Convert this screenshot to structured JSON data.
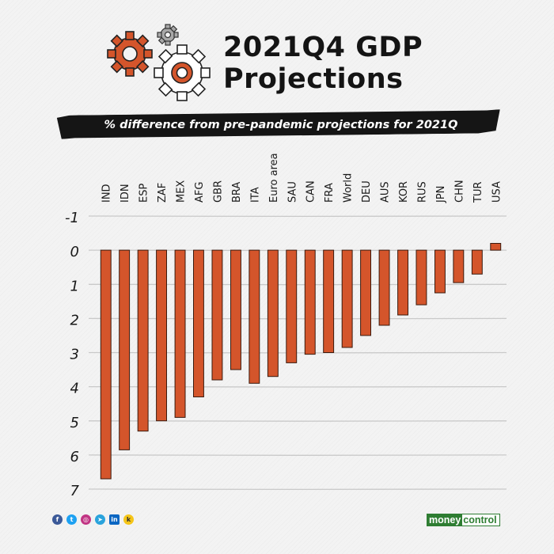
{
  "title": {
    "line1": "2021Q4 GDP",
    "line2": "Projections"
  },
  "subtitle": "% difference from pre-pandemic projections for 2021Q",
  "colors": {
    "bar": "#d4552b",
    "bar_stroke": "#3a1a0e",
    "grid": "#c9c9c9",
    "text": "#1a1a1a",
    "gear_orange": "#d4552b",
    "gear_gray": "#a8a8a8"
  },
  "chart_data": {
    "type": "bar",
    "title": "2021Q4 GDP Projections",
    "subtitle": "% difference from pre-pandemic projections for 2021Q",
    "xlabel": "",
    "ylabel": "",
    "y_inverted": true,
    "ylim": [
      -1,
      7
    ],
    "yticks": [
      -1,
      0,
      1,
      2,
      3,
      4,
      5,
      6,
      7
    ],
    "grid": true,
    "categories": [
      "IND",
      "IDN",
      "ESP",
      "ZAF",
      "MEX",
      "AFG",
      "GBR",
      "BRA",
      "ITA",
      "Euro area",
      "SAU",
      "CAN",
      "FRA",
      "World",
      "DEU",
      "AUS",
      "KOR",
      "RUS",
      "JPN",
      "CHN",
      "TUR",
      "USA"
    ],
    "values": [
      6.7,
      5.85,
      5.3,
      5.0,
      4.9,
      4.3,
      3.8,
      3.5,
      3.9,
      3.7,
      3.3,
      3.05,
      3.0,
      2.85,
      2.5,
      2.2,
      1.9,
      1.6,
      1.25,
      0.95,
      0.7,
      -0.2
    ]
  },
  "footer": {
    "social_icons": [
      "facebook-icon",
      "twitter-icon",
      "instagram-icon",
      "telegram-icon",
      "linkedin-icon",
      "koo-icon"
    ],
    "social_glyphs": [
      "f",
      "t",
      "◎",
      "➤",
      "in",
      "k"
    ],
    "logo_part1": "money",
    "logo_part2": "control"
  }
}
